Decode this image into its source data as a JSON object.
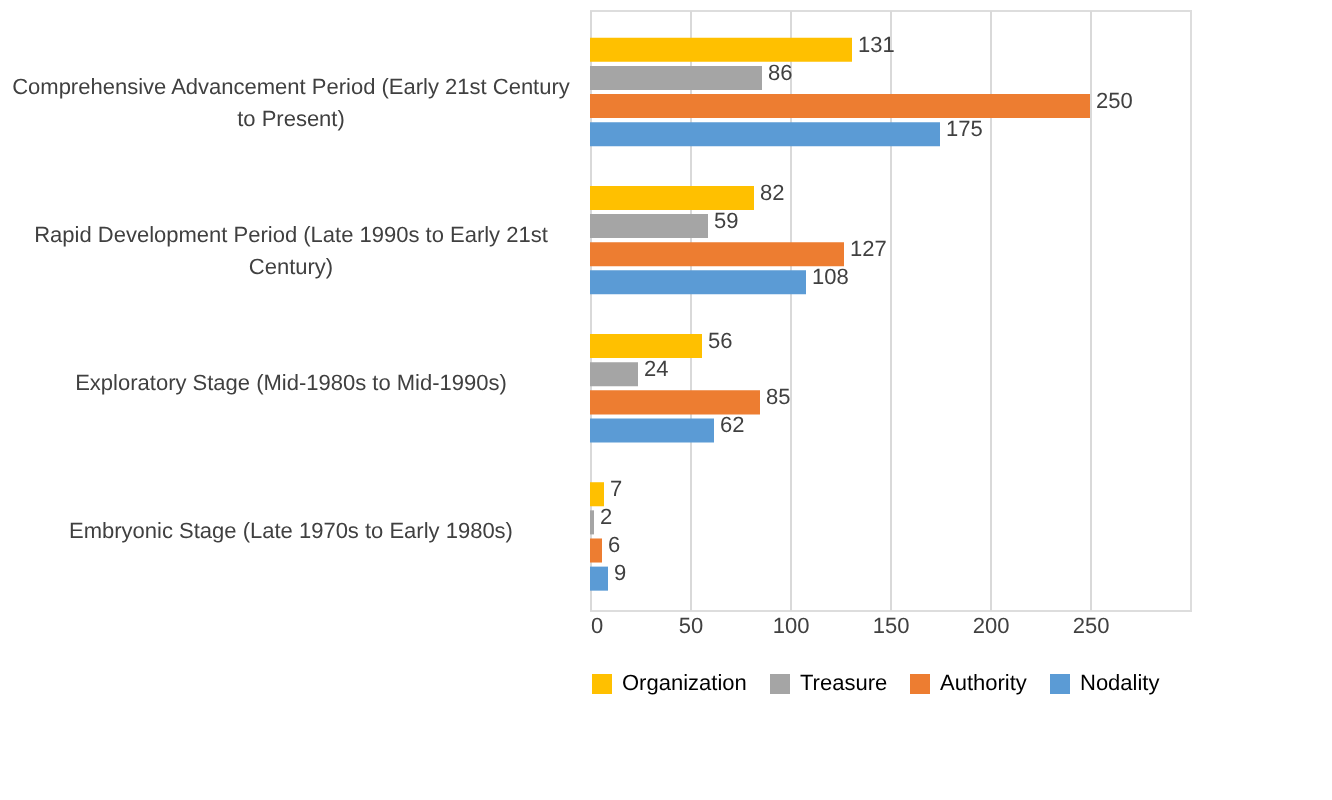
{
  "chart_data": {
    "type": "bar",
    "orientation": "horizontal",
    "categories": [
      "Comprehensive Advancement Period (Early 21st Century to Present)",
      "Rapid Development Period (Late 1990s to Early 21st Century)",
      "Exploratory Stage (Mid-1980s to Mid-1990s)",
      "Embryonic Stage (Late 1970s to Early 1980s)"
    ],
    "series": [
      {
        "name": "Organization",
        "color": "#ffc000",
        "values": [
          131,
          82,
          56,
          7
        ]
      },
      {
        "name": "Treasure",
        "color": "#a5a5a5",
        "values": [
          86,
          59,
          24,
          2
        ]
      },
      {
        "name": "Authority",
        "color": "#ed7d31",
        "values": [
          250,
          127,
          85,
          6
        ]
      },
      {
        "name": "Nodality",
        "color": "#5b9bd5",
        "values": [
          175,
          108,
          62,
          9
        ]
      }
    ],
    "xlim": [
      0,
      300
    ],
    "xticks": [
      0,
      50,
      100,
      150,
      200,
      250
    ],
    "grid": "x",
    "legend": "bottom",
    "data_labels": true
  }
}
